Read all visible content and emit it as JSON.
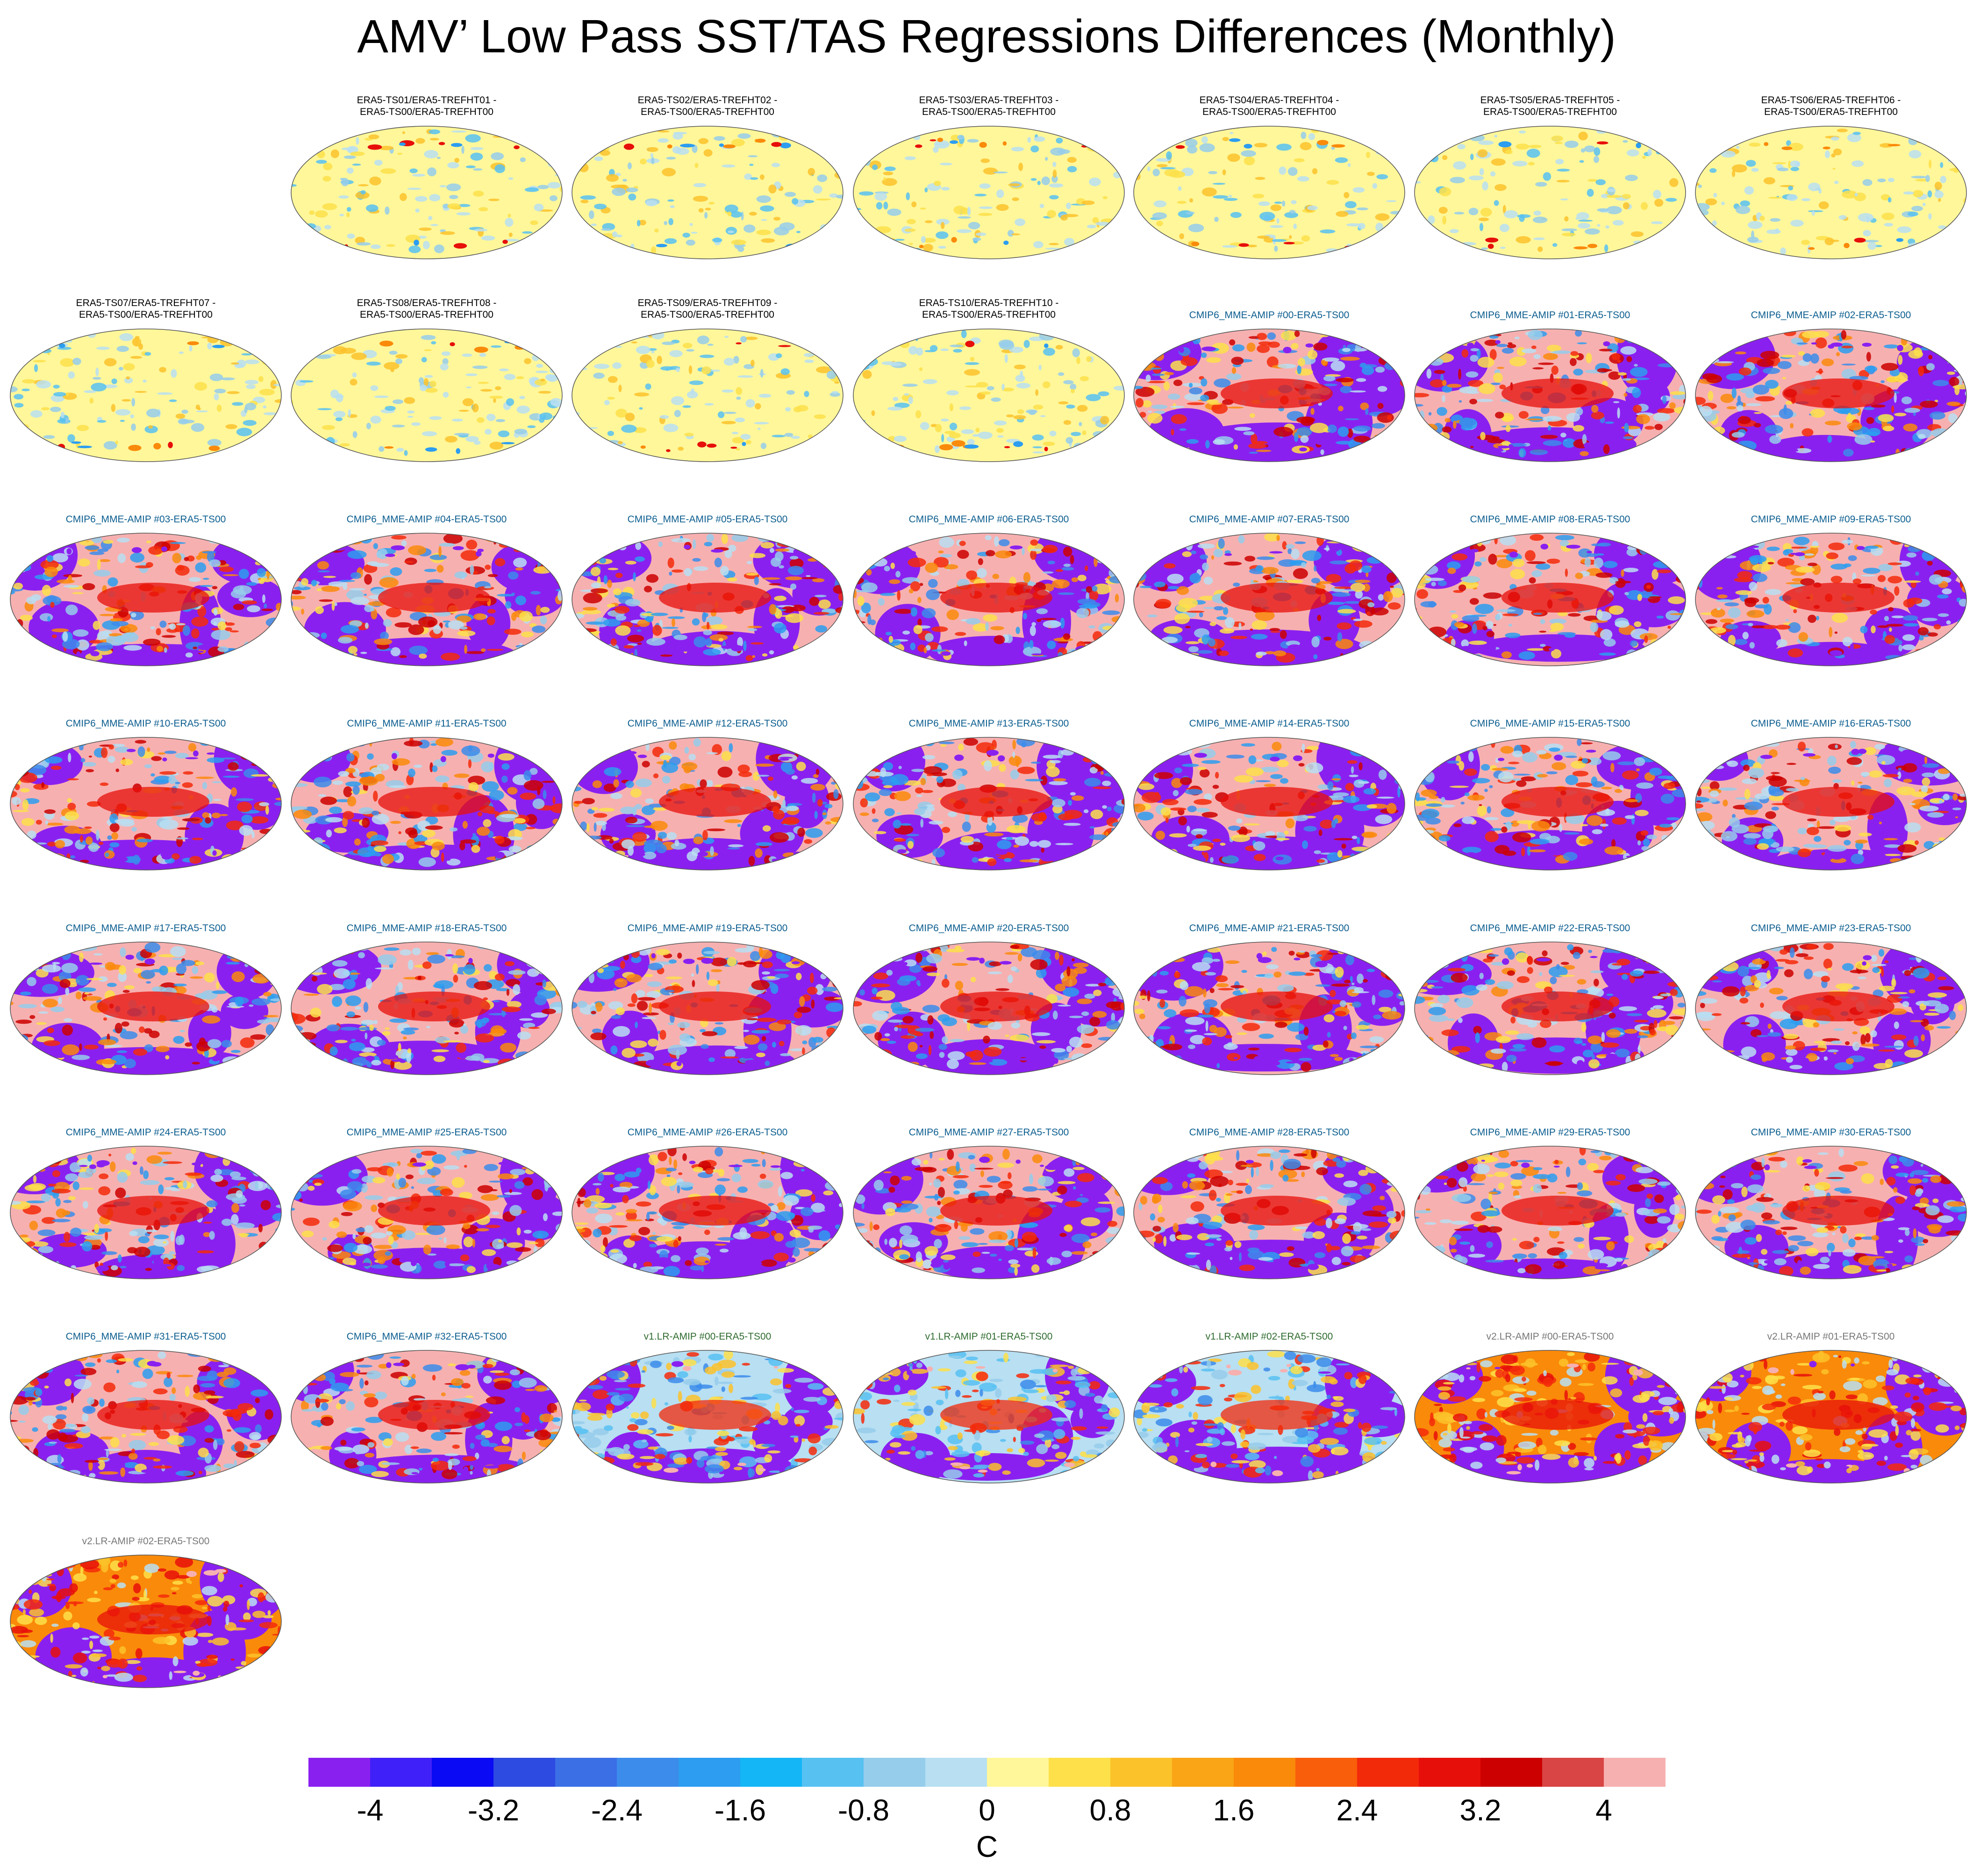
{
  "figure": {
    "title": "AMV’ Low Pass SST/TAS Regressions Differences (Monthly)"
  },
  "chart_data": {
    "type": "heatmap",
    "title": "AMV’ Low Pass SST/TAS Regressions Differences (Monthly)",
    "projection": "global-map",
    "panels": [
      {
        "label": "ERA5-TS01/ERA5-TREFHT01 -\nERA5-TS00/ERA5-TREFHT00",
        "group": "era"
      },
      {
        "label": "ERA5-TS02/ERA5-TREFHT02 -\nERA5-TS00/ERA5-TREFHT00",
        "group": "era"
      },
      {
        "label": "ERA5-TS03/ERA5-TREFHT03 -\nERA5-TS00/ERA5-TREFHT00",
        "group": "era"
      },
      {
        "label": "ERA5-TS04/ERA5-TREFHT04 -\nERA5-TS00/ERA5-TREFHT00",
        "group": "era"
      },
      {
        "label": "ERA5-TS05/ERA5-TREFHT05 -\nERA5-TS00/ERA5-TREFHT00",
        "group": "era"
      },
      {
        "label": "ERA5-TS06/ERA5-TREFHT06 -\nERA5-TS00/ERA5-TREFHT00",
        "group": "era"
      },
      {
        "label": "ERA5-TS07/ERA5-TREFHT07 -\nERA5-TS00/ERA5-TREFHT00",
        "group": "era"
      },
      {
        "label": "ERA5-TS08/ERA5-TREFHT08 -\nERA5-TS00/ERA5-TREFHT00",
        "group": "era"
      },
      {
        "label": "ERA5-TS09/ERA5-TREFHT09 -\nERA5-TS00/ERA5-TREFHT00",
        "group": "era"
      },
      {
        "label": "ERA5-TS10/ERA5-TREFHT10 -\nERA5-TS00/ERA5-TREFHT00",
        "group": "era"
      },
      {
        "label": "CMIP6_MME-AMIP  #00-ERA5-TS00",
        "group": "cmip"
      },
      {
        "label": "CMIP6_MME-AMIP  #01-ERA5-TS00",
        "group": "cmip"
      },
      {
        "label": "CMIP6_MME-AMIP  #02-ERA5-TS00",
        "group": "cmip"
      },
      {
        "label": "CMIP6_MME-AMIP  #03-ERA5-TS00",
        "group": "cmip"
      },
      {
        "label": "CMIP6_MME-AMIP  #04-ERA5-TS00",
        "group": "cmip"
      },
      {
        "label": "CMIP6_MME-AMIP  #05-ERA5-TS00",
        "group": "cmip"
      },
      {
        "label": "CMIP6_MME-AMIP  #06-ERA5-TS00",
        "group": "cmip"
      },
      {
        "label": "CMIP6_MME-AMIP  #07-ERA5-TS00",
        "group": "cmip"
      },
      {
        "label": "CMIP6_MME-AMIP  #08-ERA5-TS00",
        "group": "cmip"
      },
      {
        "label": "CMIP6_MME-AMIP  #09-ERA5-TS00",
        "group": "cmip"
      },
      {
        "label": "CMIP6_MME-AMIP  #10-ERA5-TS00",
        "group": "cmip"
      },
      {
        "label": "CMIP6_MME-AMIP  #11-ERA5-TS00",
        "group": "cmip"
      },
      {
        "label": "CMIP6_MME-AMIP  #12-ERA5-TS00",
        "group": "cmip"
      },
      {
        "label": "CMIP6_MME-AMIP  #13-ERA5-TS00",
        "group": "cmip"
      },
      {
        "label": "CMIP6_MME-AMIP  #14-ERA5-TS00",
        "group": "cmip"
      },
      {
        "label": "CMIP6_MME-AMIP  #15-ERA5-TS00",
        "group": "cmip"
      },
      {
        "label": "CMIP6_MME-AMIP  #16-ERA5-TS00",
        "group": "cmip"
      },
      {
        "label": "CMIP6_MME-AMIP  #17-ERA5-TS00",
        "group": "cmip"
      },
      {
        "label": "CMIP6_MME-AMIP  #18-ERA5-TS00",
        "group": "cmip"
      },
      {
        "label": "CMIP6_MME-AMIP  #19-ERA5-TS00",
        "group": "cmip"
      },
      {
        "label": "CMIP6_MME-AMIP  #20-ERA5-TS00",
        "group": "cmip"
      },
      {
        "label": "CMIP6_MME-AMIP  #21-ERA5-TS00",
        "group": "cmip"
      },
      {
        "label": "CMIP6_MME-AMIP  #22-ERA5-TS00",
        "group": "cmip"
      },
      {
        "label": "CMIP6_MME-AMIP  #23-ERA5-TS00",
        "group": "cmip"
      },
      {
        "label": "CMIP6_MME-AMIP  #24-ERA5-TS00",
        "group": "cmip"
      },
      {
        "label": "CMIP6_MME-AMIP  #25-ERA5-TS00",
        "group": "cmip"
      },
      {
        "label": "CMIP6_MME-AMIP  #26-ERA5-TS00",
        "group": "cmip"
      },
      {
        "label": "CMIP6_MME-AMIP  #27-ERA5-TS00",
        "group": "cmip"
      },
      {
        "label": "CMIP6_MME-AMIP  #28-ERA5-TS00",
        "group": "cmip"
      },
      {
        "label": "CMIP6_MME-AMIP  #29-ERA5-TS00",
        "group": "cmip"
      },
      {
        "label": "CMIP6_MME-AMIP  #30-ERA5-TS00",
        "group": "cmip"
      },
      {
        "label": "CMIP6_MME-AMIP  #31-ERA5-TS00",
        "group": "cmip"
      },
      {
        "label": "CMIP6_MME-AMIP  #32-ERA5-TS00",
        "group": "cmip"
      },
      {
        "label": "v1.LR-AMIP  #00-ERA5-TS00",
        "group": "v1"
      },
      {
        "label": "v1.LR-AMIP  #01-ERA5-TS00",
        "group": "v1"
      },
      {
        "label": "v1.LR-AMIP  #02-ERA5-TS00",
        "group": "v1"
      },
      {
        "label": "v2.LR-AMIP  #00-ERA5-TS00",
        "group": "v2"
      },
      {
        "label": "v2.LR-AMIP  #01-ERA5-TS00",
        "group": "v2"
      },
      {
        "label": "v2.LR-AMIP  #02-ERA5-TS00",
        "group": "v2"
      }
    ],
    "colorbar": {
      "units": "C",
      "levels": [
        -4.4,
        -4.0,
        -3.6,
        -3.2,
        -2.8,
        -2.4,
        -2.0,
        -1.6,
        -1.2,
        -0.8,
        -0.4,
        0,
        0.4,
        0.8,
        1.2,
        1.6,
        2.0,
        2.4,
        2.8,
        3.2,
        3.6,
        4.0,
        4.4
      ],
      "tick_labels": [
        "-4",
        "-3.2",
        "-2.4",
        "-1.6",
        "-0.8",
        "0",
        "0.8",
        "1.6",
        "2.4",
        "3.2",
        "4"
      ],
      "tick_values": [
        -4,
        -3.2,
        -2.4,
        -1.6,
        -0.8,
        0,
        0.8,
        1.6,
        2.4,
        3.2,
        4
      ],
      "colors": [
        "#8A20F0",
        "#4020F8",
        "#0A0AF4",
        "#2D4BE0",
        "#3B6FE6",
        "#3B8CEB",
        "#2C9DF0",
        "#14B6F6",
        "#57C1F2",
        "#95CDEB",
        "#B8DFF2",
        "#FFF79A",
        "#FDE04A",
        "#FBC22A",
        "#F9A516",
        "#FA8A0A",
        "#F95E0A",
        "#F32A0A",
        "#E70F0A",
        "#CC0000",
        "#D94444",
        "#F7B0B0"
      ]
    }
  }
}
